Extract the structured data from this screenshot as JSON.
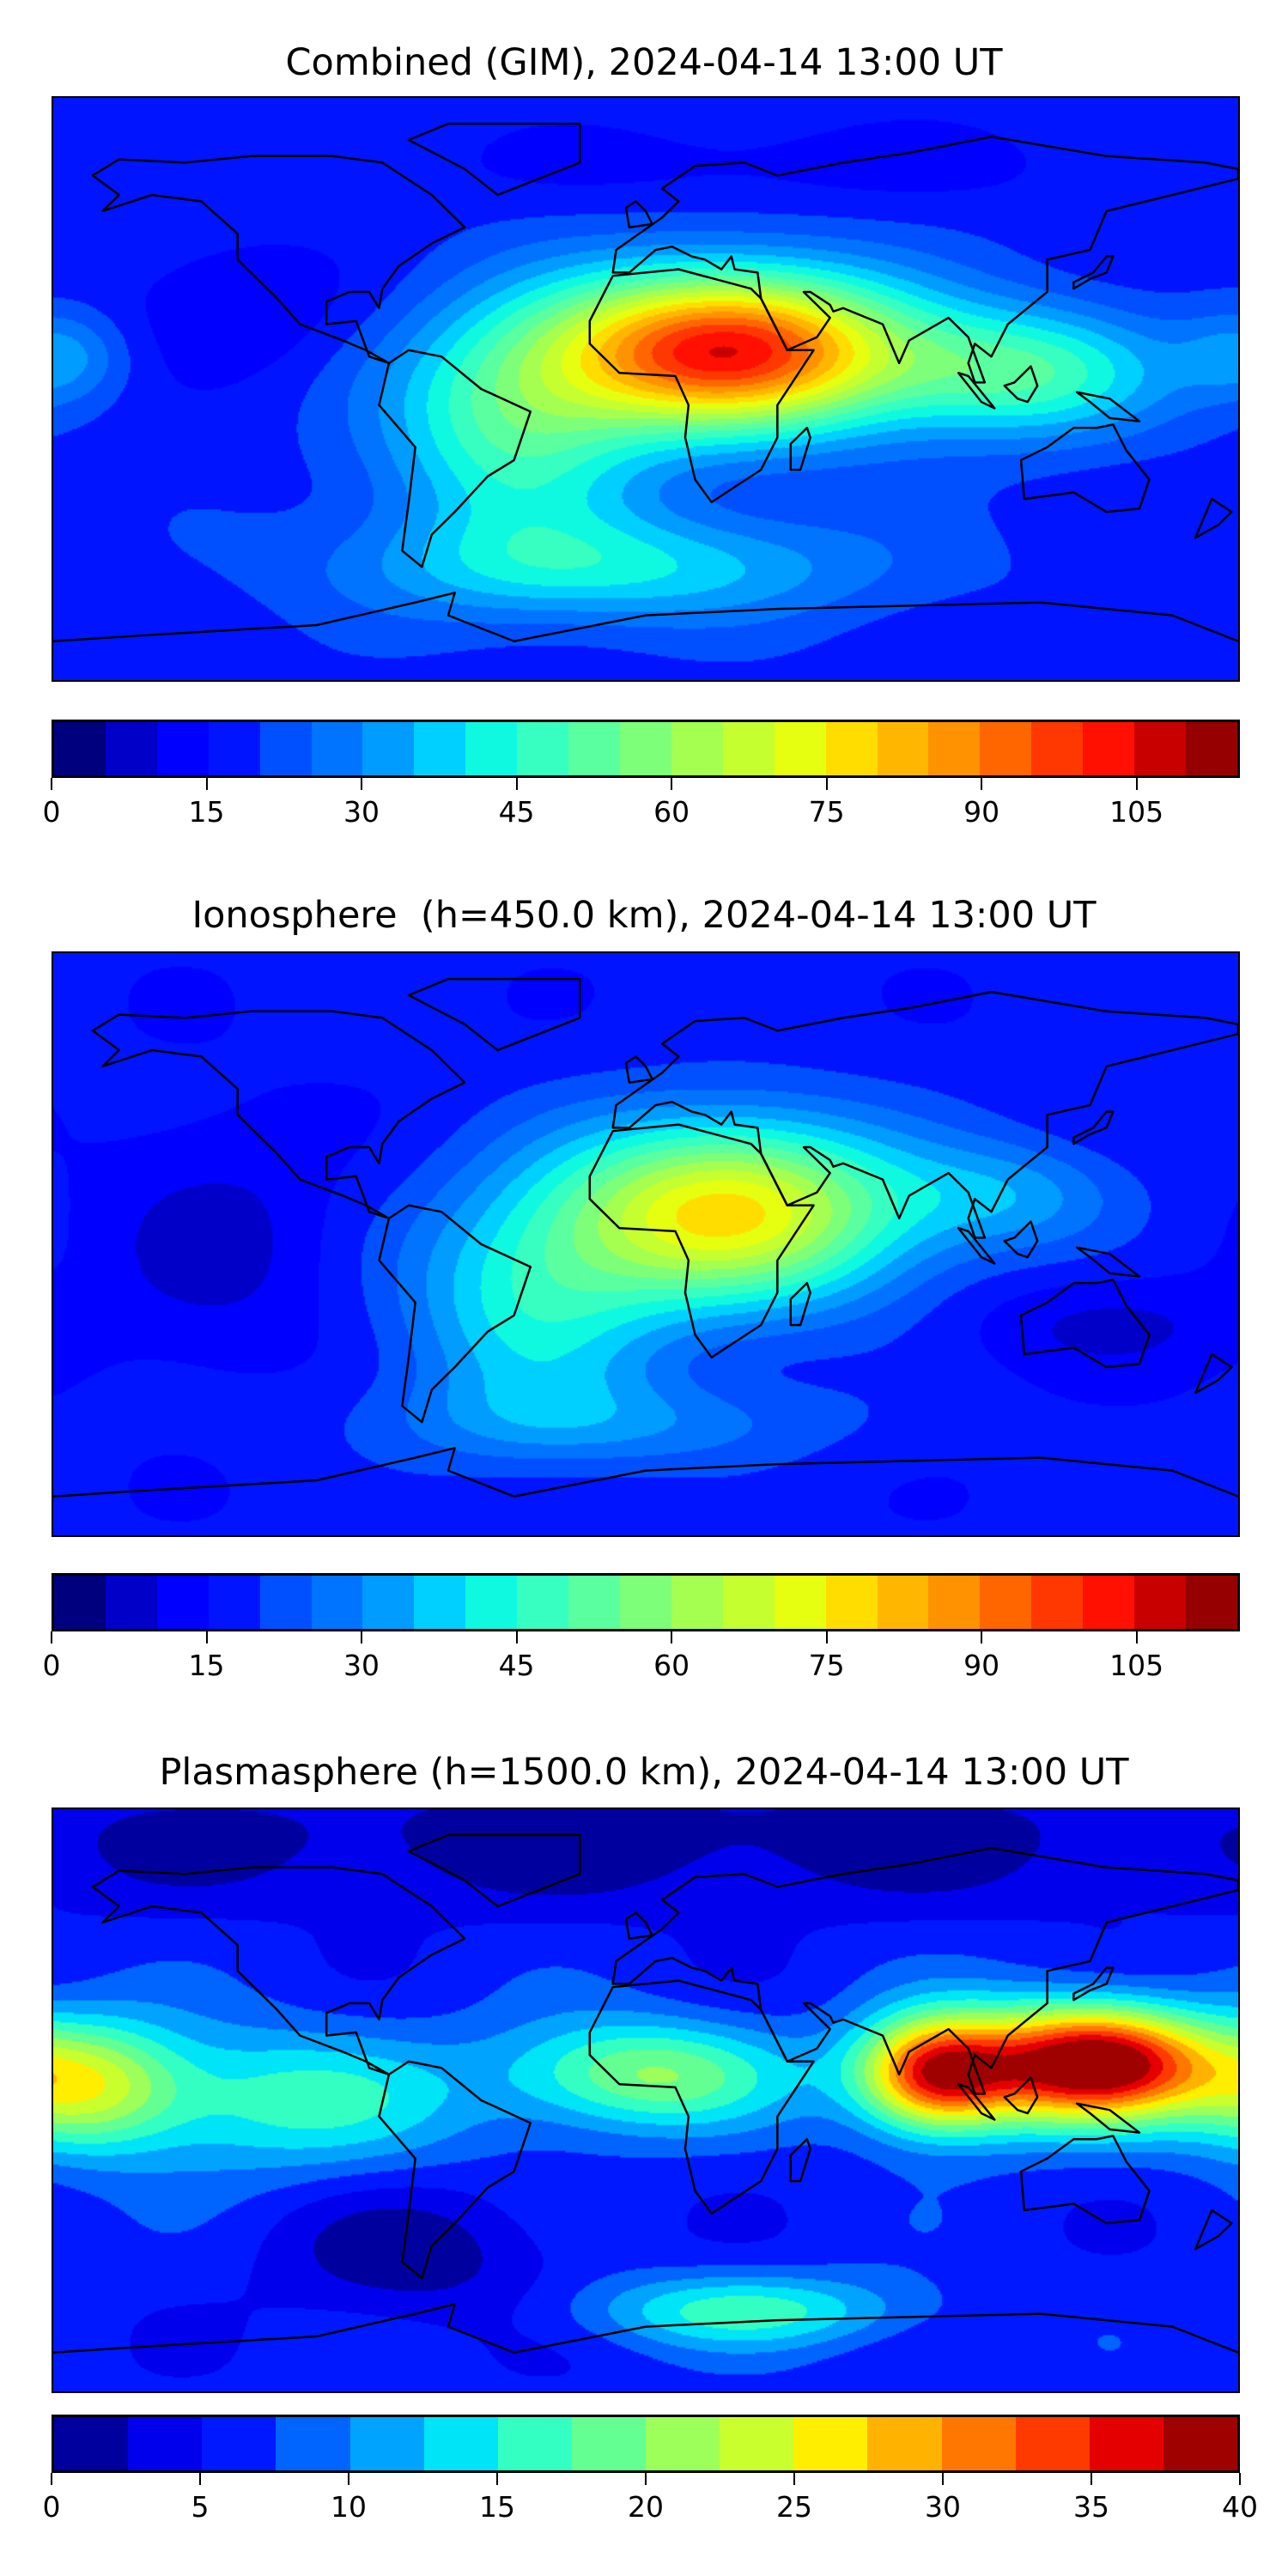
{
  "chart_data": [
    {
      "type": "heatmap",
      "title": "Combined (GIM), 2024-04-14 13:00 UT",
      "projection": "equirectangular",
      "lon_range": [
        -180,
        180
      ],
      "lat_range": [
        -90,
        90
      ],
      "levels": [
        0,
        5,
        10,
        15,
        20,
        25,
        30,
        35,
        40,
        45,
        50,
        55,
        60,
        65,
        70,
        75,
        80,
        85,
        90,
        95,
        100,
        105,
        110,
        115
      ],
      "colorbar_ticks": [
        "0",
        "15",
        "30",
        "45",
        "60",
        "75",
        "90",
        "105"
      ],
      "colorbar_tick_values": [
        0,
        15,
        30,
        45,
        60,
        75,
        90,
        105
      ],
      "vmax": 115,
      "base_value": 18,
      "features": [
        {
          "lon": 25,
          "lat": 12,
          "amp": 85,
          "slon": 38,
          "slat": 17
        },
        {
          "lon": -40,
          "lat": -12,
          "amp": 30,
          "slon": 28,
          "slat": 25
        },
        {
          "lon": 115,
          "lat": 5,
          "amp": 30,
          "slon": 30,
          "slat": 14
        },
        {
          "lon": -10,
          "lat": -55,
          "amp": 22,
          "slon": 55,
          "slat": 12
        },
        {
          "lon": -178,
          "lat": 10,
          "amp": 14,
          "slon": 14,
          "slat": 10
        },
        {
          "lon": -125,
          "lat": 25,
          "amp": -8,
          "slon": 25,
          "slat": 15
        },
        {
          "lon": 40,
          "lat": 70,
          "amp": -5,
          "slon": 80,
          "slat": 10
        }
      ]
    },
    {
      "type": "heatmap",
      "title": "Ionosphere  (h=450.0 km), 2024-04-14 13:00 UT",
      "projection": "equirectangular",
      "lon_range": [
        -180,
        180
      ],
      "lat_range": [
        -90,
        90
      ],
      "levels": [
        0,
        5,
        10,
        15,
        20,
        25,
        30,
        35,
        40,
        45,
        50,
        55,
        60,
        65,
        70,
        75,
        80,
        85,
        90,
        95,
        100,
        105,
        110,
        115
      ],
      "colorbar_ticks": [
        "0",
        "15",
        "30",
        "45",
        "60",
        "75",
        "90",
        "105"
      ],
      "colorbar_tick_values": [
        0,
        15,
        30,
        45,
        60,
        75,
        90,
        105
      ],
      "vmax": 115,
      "base_value": 16,
      "features": [
        {
          "lon": 25,
          "lat": 10,
          "amp": 60,
          "slon": 38,
          "slat": 20
        },
        {
          "lon": -35,
          "lat": -20,
          "amp": 24,
          "slon": 28,
          "slat": 25
        },
        {
          "lon": 110,
          "lat": 15,
          "amp": 15,
          "slon": 25,
          "slat": 12
        },
        {
          "lon": -130,
          "lat": 0,
          "amp": -8,
          "slon": 25,
          "slat": 25
        },
        {
          "lon": 140,
          "lat": -25,
          "amp": -7,
          "slon": 30,
          "slat": 10
        },
        {
          "lon": -10,
          "lat": -55,
          "amp": 12,
          "slon": 50,
          "slat": 10
        }
      ]
    },
    {
      "type": "heatmap",
      "title": "Plasmasphere (h=1500.0 km), 2024-04-14 13:00 UT",
      "projection": "equirectangular",
      "lon_range": [
        -180,
        180
      ],
      "lat_range": [
        -90,
        90
      ],
      "levels": [
        0,
        2.5,
        5,
        7.5,
        10,
        12.5,
        15,
        17.5,
        20,
        22.5,
        25,
        27.5,
        30,
        32.5,
        35,
        37.5,
        40
      ],
      "colorbar_ticks": [
        "0",
        "5",
        "10",
        "15",
        "20",
        "25",
        "30",
        "35",
        "40"
      ],
      "colorbar_tick_values": [
        0,
        5,
        10,
        15,
        20,
        25,
        30,
        35,
        40
      ],
      "vmax": 40,
      "base_value": 6,
      "features": [
        {
          "lon": 88,
          "lat": 8,
          "amp": 24,
          "slon": 16,
          "slat": 12
        },
        {
          "lon": 140,
          "lat": 12,
          "amp": 26,
          "slon": 22,
          "slat": 12
        },
        {
          "lon": 115,
          "lat": 10,
          "amp": 14,
          "slon": 30,
          "slat": 14
        },
        {
          "lon": -170,
          "lat": 5,
          "amp": 15,
          "slon": 20,
          "slat": 14
        },
        {
          "lon": -110,
          "lat": 0,
          "amp": 10,
          "slon": 40,
          "slat": 16
        },
        {
          "lon": 0,
          "lat": 8,
          "amp": 14,
          "slon": 30,
          "slat": 12
        },
        {
          "lon": 30,
          "lat": -65,
          "amp": 10,
          "slon": 35,
          "slat": 8
        },
        {
          "lon": -70,
          "lat": -48,
          "amp": -5,
          "slon": 30,
          "slat": 15
        },
        {
          "lon": 0,
          "lat": 80,
          "amp": -5,
          "slon": 180,
          "slat": 15
        }
      ]
    }
  ],
  "colors": {
    "cmap23": [
      "#00007f",
      "#0000c8",
      "#0000ff",
      "#0014ff",
      "#0050ff",
      "#0074ff",
      "#009cff",
      "#00d0ff",
      "#0ff9e0",
      "#36ffc1",
      "#5affa0",
      "#7dff7a",
      "#a4ff51",
      "#c6ff30",
      "#e6ff11",
      "#ffdd00",
      "#ffb600",
      "#ff9200",
      "#ff6600",
      "#ff3700",
      "#ff1000",
      "#c80000",
      "#960000"
    ],
    "cmap16": [
      "#00009f",
      "#0000ed",
      "#0018ff",
      "#0064ff",
      "#00a4ff",
      "#00e4f8",
      "#33ffc3",
      "#63ff93",
      "#9cff5a",
      "#c9ff2d",
      "#ffee00",
      "#ffb200",
      "#ff7700",
      "#ff3a00",
      "#e50000",
      "#9f0000"
    ]
  }
}
